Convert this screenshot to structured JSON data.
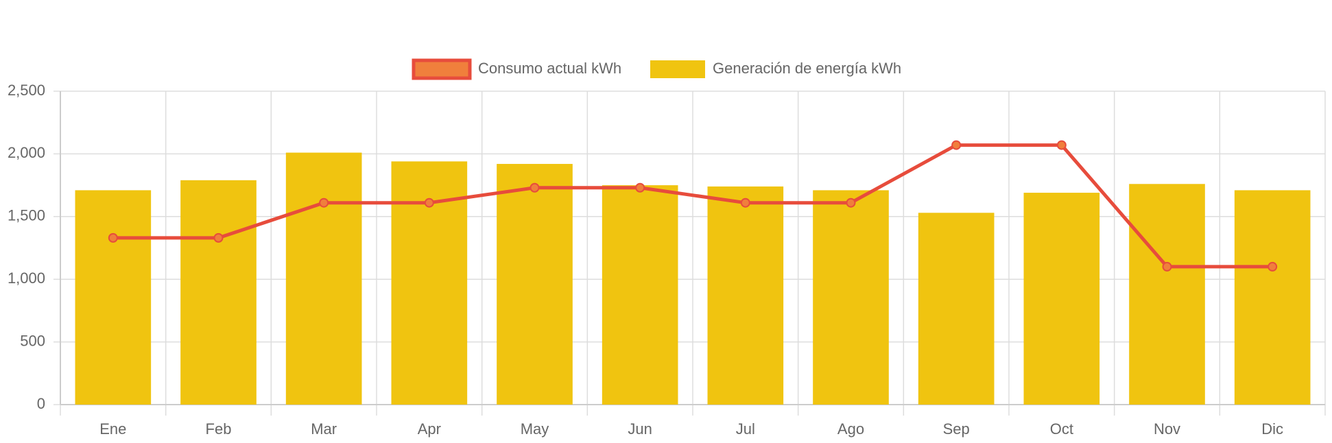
{
  "chart_data": {
    "type": "bar",
    "categories": [
      "Ene",
      "Feb",
      "Mar",
      "Apr",
      "May",
      "Jun",
      "Jul",
      "Ago",
      "Sep",
      "Oct",
      "Nov",
      "Dic"
    ],
    "series": [
      {
        "name": "Consumo actual kWh",
        "type": "line",
        "color": "#e74c3c",
        "point_color": "#f07f3c",
        "values": [
          1330,
          1330,
          1610,
          1610,
          1730,
          1730,
          1610,
          1610,
          2070,
          2070,
          1100,
          1100
        ]
      },
      {
        "name": "Generación de energía kWh",
        "type": "bar",
        "color": "#f0c410",
        "values": [
          1710,
          1790,
          2010,
          1940,
          1920,
          1750,
          1740,
          1710,
          1530,
          1690,
          1760,
          1710
        ]
      }
    ],
    "ylim": [
      0,
      2500
    ],
    "yticks": [
      0,
      500,
      {
        "value": 1000,
        "label": "1,000"
      },
      {
        "value": 1500,
        "label": "1,500"
      },
      {
        "value": 2000,
        "label": "2,000"
      },
      {
        "value": 2500,
        "label": "2,500"
      }
    ],
    "grid": true,
    "legend": "top"
  }
}
